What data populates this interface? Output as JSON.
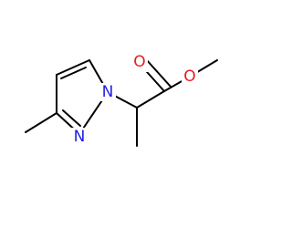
{
  "atoms": [
    {
      "label": "N"
    },
    {
      "label": "N"
    },
    {
      "label": "O"
    },
    {
      "label": "O"
    }
  ]
}
